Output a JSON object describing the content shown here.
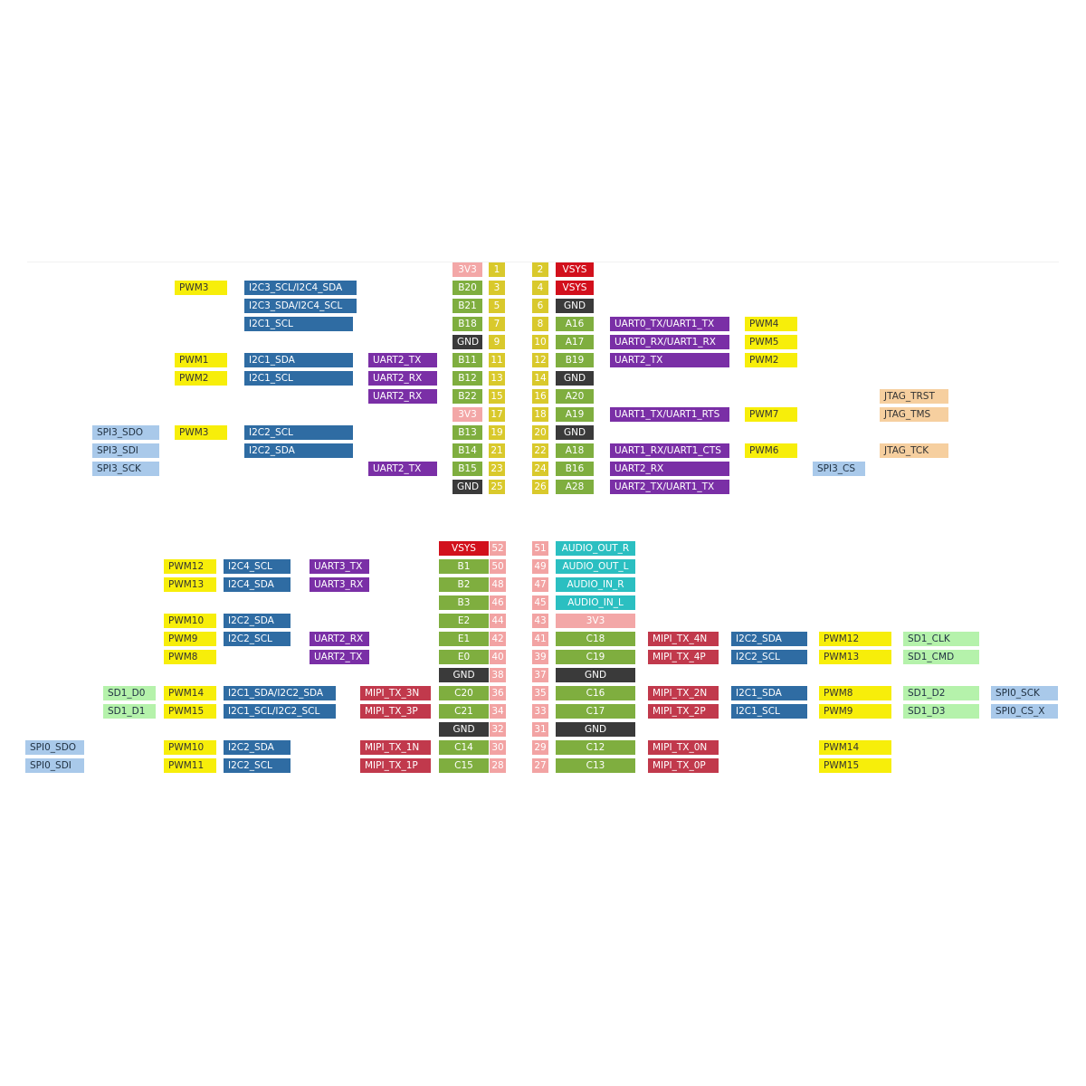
{
  "blocks": [
    {
      "rows": [
        {
          "left": [
            null,
            null,
            null,
            null,
            "3V3",
            "1"
          ],
          "right": [
            "2",
            "VSYS",
            null,
            null,
            null,
            null
          ]
        },
        {
          "left": [
            null,
            "PWM3",
            "I2C3_SCL/I2C4_SDA",
            null,
            "B20",
            "3"
          ],
          "right": [
            "4",
            "VSYS",
            null,
            null,
            null,
            null
          ]
        },
        {
          "left": [
            null,
            null,
            "I2C3_SDA/I2C4_SCL",
            null,
            "B21",
            "5"
          ],
          "right": [
            "6",
            "GND",
            null,
            null,
            null,
            null
          ]
        },
        {
          "left": [
            null,
            null,
            "I2C1_SCL",
            null,
            "B18",
            "7"
          ],
          "right": [
            "8",
            "A16",
            "UART0_TX/UART1_TX",
            "PWM4",
            null,
            null
          ]
        },
        {
          "left": [
            null,
            null,
            null,
            null,
            "GND",
            "9"
          ],
          "right": [
            "10",
            "A17",
            "UART0_RX/UART1_RX",
            "PWM5",
            null,
            null
          ]
        },
        {
          "left": [
            null,
            "PWM1",
            "I2C1_SDA",
            "UART2_TX",
            "B11",
            "11"
          ],
          "right": [
            "12",
            "B19",
            "UART2_TX",
            "PWM2",
            null,
            null
          ]
        },
        {
          "left": [
            null,
            "PWM2",
            "I2C1_SCL",
            "UART2_RX",
            "B12",
            "13"
          ],
          "right": [
            "14",
            "GND",
            null,
            null,
            null,
            null
          ]
        },
        {
          "left": [
            null,
            null,
            null,
            "UART2_RX",
            "B22",
            "15"
          ],
          "right": [
            "16",
            "A20",
            null,
            null,
            null,
            "JTAG_TRST"
          ]
        },
        {
          "left": [
            null,
            null,
            null,
            null,
            "3V3",
            "17"
          ],
          "right": [
            "18",
            "A19",
            "UART1_TX/UART1_RTS",
            "PWM7",
            null,
            "JTAG_TMS"
          ]
        },
        {
          "left": [
            "SPI3_SDO",
            "PWM3",
            "I2C2_SCL",
            null,
            "B13",
            "19"
          ],
          "right": [
            "20",
            "GND",
            null,
            null,
            null,
            null
          ]
        },
        {
          "left": [
            "SPI3_SDI",
            null,
            "I2C2_SDA",
            null,
            "B14",
            "21"
          ],
          "right": [
            "22",
            "A18",
            "UART1_RX/UART1_CTS",
            "PWM6",
            null,
            "JTAG_TCK"
          ]
        },
        {
          "left": [
            "SPI3_SCK",
            null,
            null,
            "UART2_TX",
            "B15",
            "23"
          ],
          "right": [
            "24",
            "B16",
            "UART2_RX",
            null,
            "SPI3_CS",
            null
          ]
        },
        {
          "left": [
            null,
            null,
            null,
            null,
            "GND",
            "25"
          ],
          "right": [
            "26",
            "A28",
            "UART2_TX/UART1_TX",
            null,
            null,
            null
          ]
        }
      ]
    },
    {
      "rows": [
        {
          "left": [
            null,
            null,
            null,
            null,
            null,
            null,
            "VSYS",
            "52"
          ],
          "right": [
            "51",
            "AUDIO_OUT_R",
            null,
            null,
            null,
            null,
            null
          ]
        },
        {
          "left": [
            null,
            null,
            "PWM12",
            "I2C4_SCL",
            "UART3_TX",
            null,
            "B1",
            "50"
          ],
          "right": [
            "49",
            "AUDIO_OUT_L",
            null,
            null,
            null,
            null,
            null
          ]
        },
        {
          "left": [
            null,
            null,
            "PWM13",
            "I2C4_SDA",
            "UART3_RX",
            null,
            "B2",
            "48"
          ],
          "right": [
            "47",
            "AUDIO_IN_R",
            null,
            null,
            null,
            null,
            null
          ]
        },
        {
          "left": [
            null,
            null,
            null,
            null,
            null,
            null,
            "B3",
            "46"
          ],
          "right": [
            "45",
            "AUDIO_IN_L",
            null,
            null,
            null,
            null,
            null
          ]
        },
        {
          "left": [
            null,
            null,
            "PWM10",
            "I2C2_SDA",
            null,
            null,
            "E2",
            "44"
          ],
          "right": [
            "43",
            "3V3",
            null,
            null,
            null,
            null,
            null
          ]
        },
        {
          "left": [
            null,
            null,
            "PWM9",
            "I2C2_SCL",
            "UART2_RX",
            null,
            "E1",
            "42"
          ],
          "right": [
            "41",
            "C18",
            "MIPI_TX_4N",
            "I2C2_SDA",
            "PWM12",
            "SD1_CLK",
            null
          ]
        },
        {
          "left": [
            null,
            null,
            "PWM8",
            null,
            "UART2_TX",
            null,
            "E0",
            "40"
          ],
          "right": [
            "39",
            "C19",
            "MIPI_TX_4P",
            "I2C2_SCL",
            "PWM13",
            "SD1_CMD",
            null
          ]
        },
        {
          "left": [
            null,
            null,
            null,
            null,
            null,
            null,
            "GND",
            "38"
          ],
          "right": [
            "37",
            "GND",
            null,
            null,
            null,
            null,
            null
          ]
        },
        {
          "left": [
            null,
            "SD1_D0",
            "PWM14",
            "I2C1_SDA/I2C2_SDA",
            null,
            "MIPI_TX_3N",
            "C20",
            "36"
          ],
          "right": [
            "35",
            "C16",
            "MIPI_TX_2N",
            "I2C1_SDA",
            "PWM8",
            "SD1_D2",
            "SPI0_SCK"
          ]
        },
        {
          "left": [
            null,
            "SD1_D1",
            "PWM15",
            "I2C1_SCL/I2C2_SCL",
            null,
            "MIPI_TX_3P",
            "C21",
            "34"
          ],
          "right": [
            "33",
            "C17",
            "MIPI_TX_2P",
            "I2C1_SCL",
            "PWM9",
            "SD1_D3",
            "SPI0_CS_X"
          ]
        },
        {
          "left": [
            null,
            null,
            null,
            null,
            null,
            null,
            "GND",
            "32"
          ],
          "right": [
            "31",
            "GND",
            null,
            null,
            null,
            null,
            null
          ]
        },
        {
          "left": [
            "SPI0_SDO",
            null,
            "PWM10",
            "I2C2_SDA",
            null,
            "MIPI_TX_1N",
            "C14",
            "30"
          ],
          "right": [
            "29",
            "C12",
            "MIPI_TX_0N",
            null,
            "PWM14",
            null,
            null
          ]
        },
        {
          "left": [
            "SPI0_SDI",
            null,
            "PWM11",
            "I2C2_SCL",
            null,
            "MIPI_TX_1P",
            "C15",
            "28"
          ],
          "right": [
            "27",
            "C13",
            "MIPI_TX_0P",
            null,
            "PWM15",
            null,
            null
          ]
        }
      ]
    }
  ]
}
